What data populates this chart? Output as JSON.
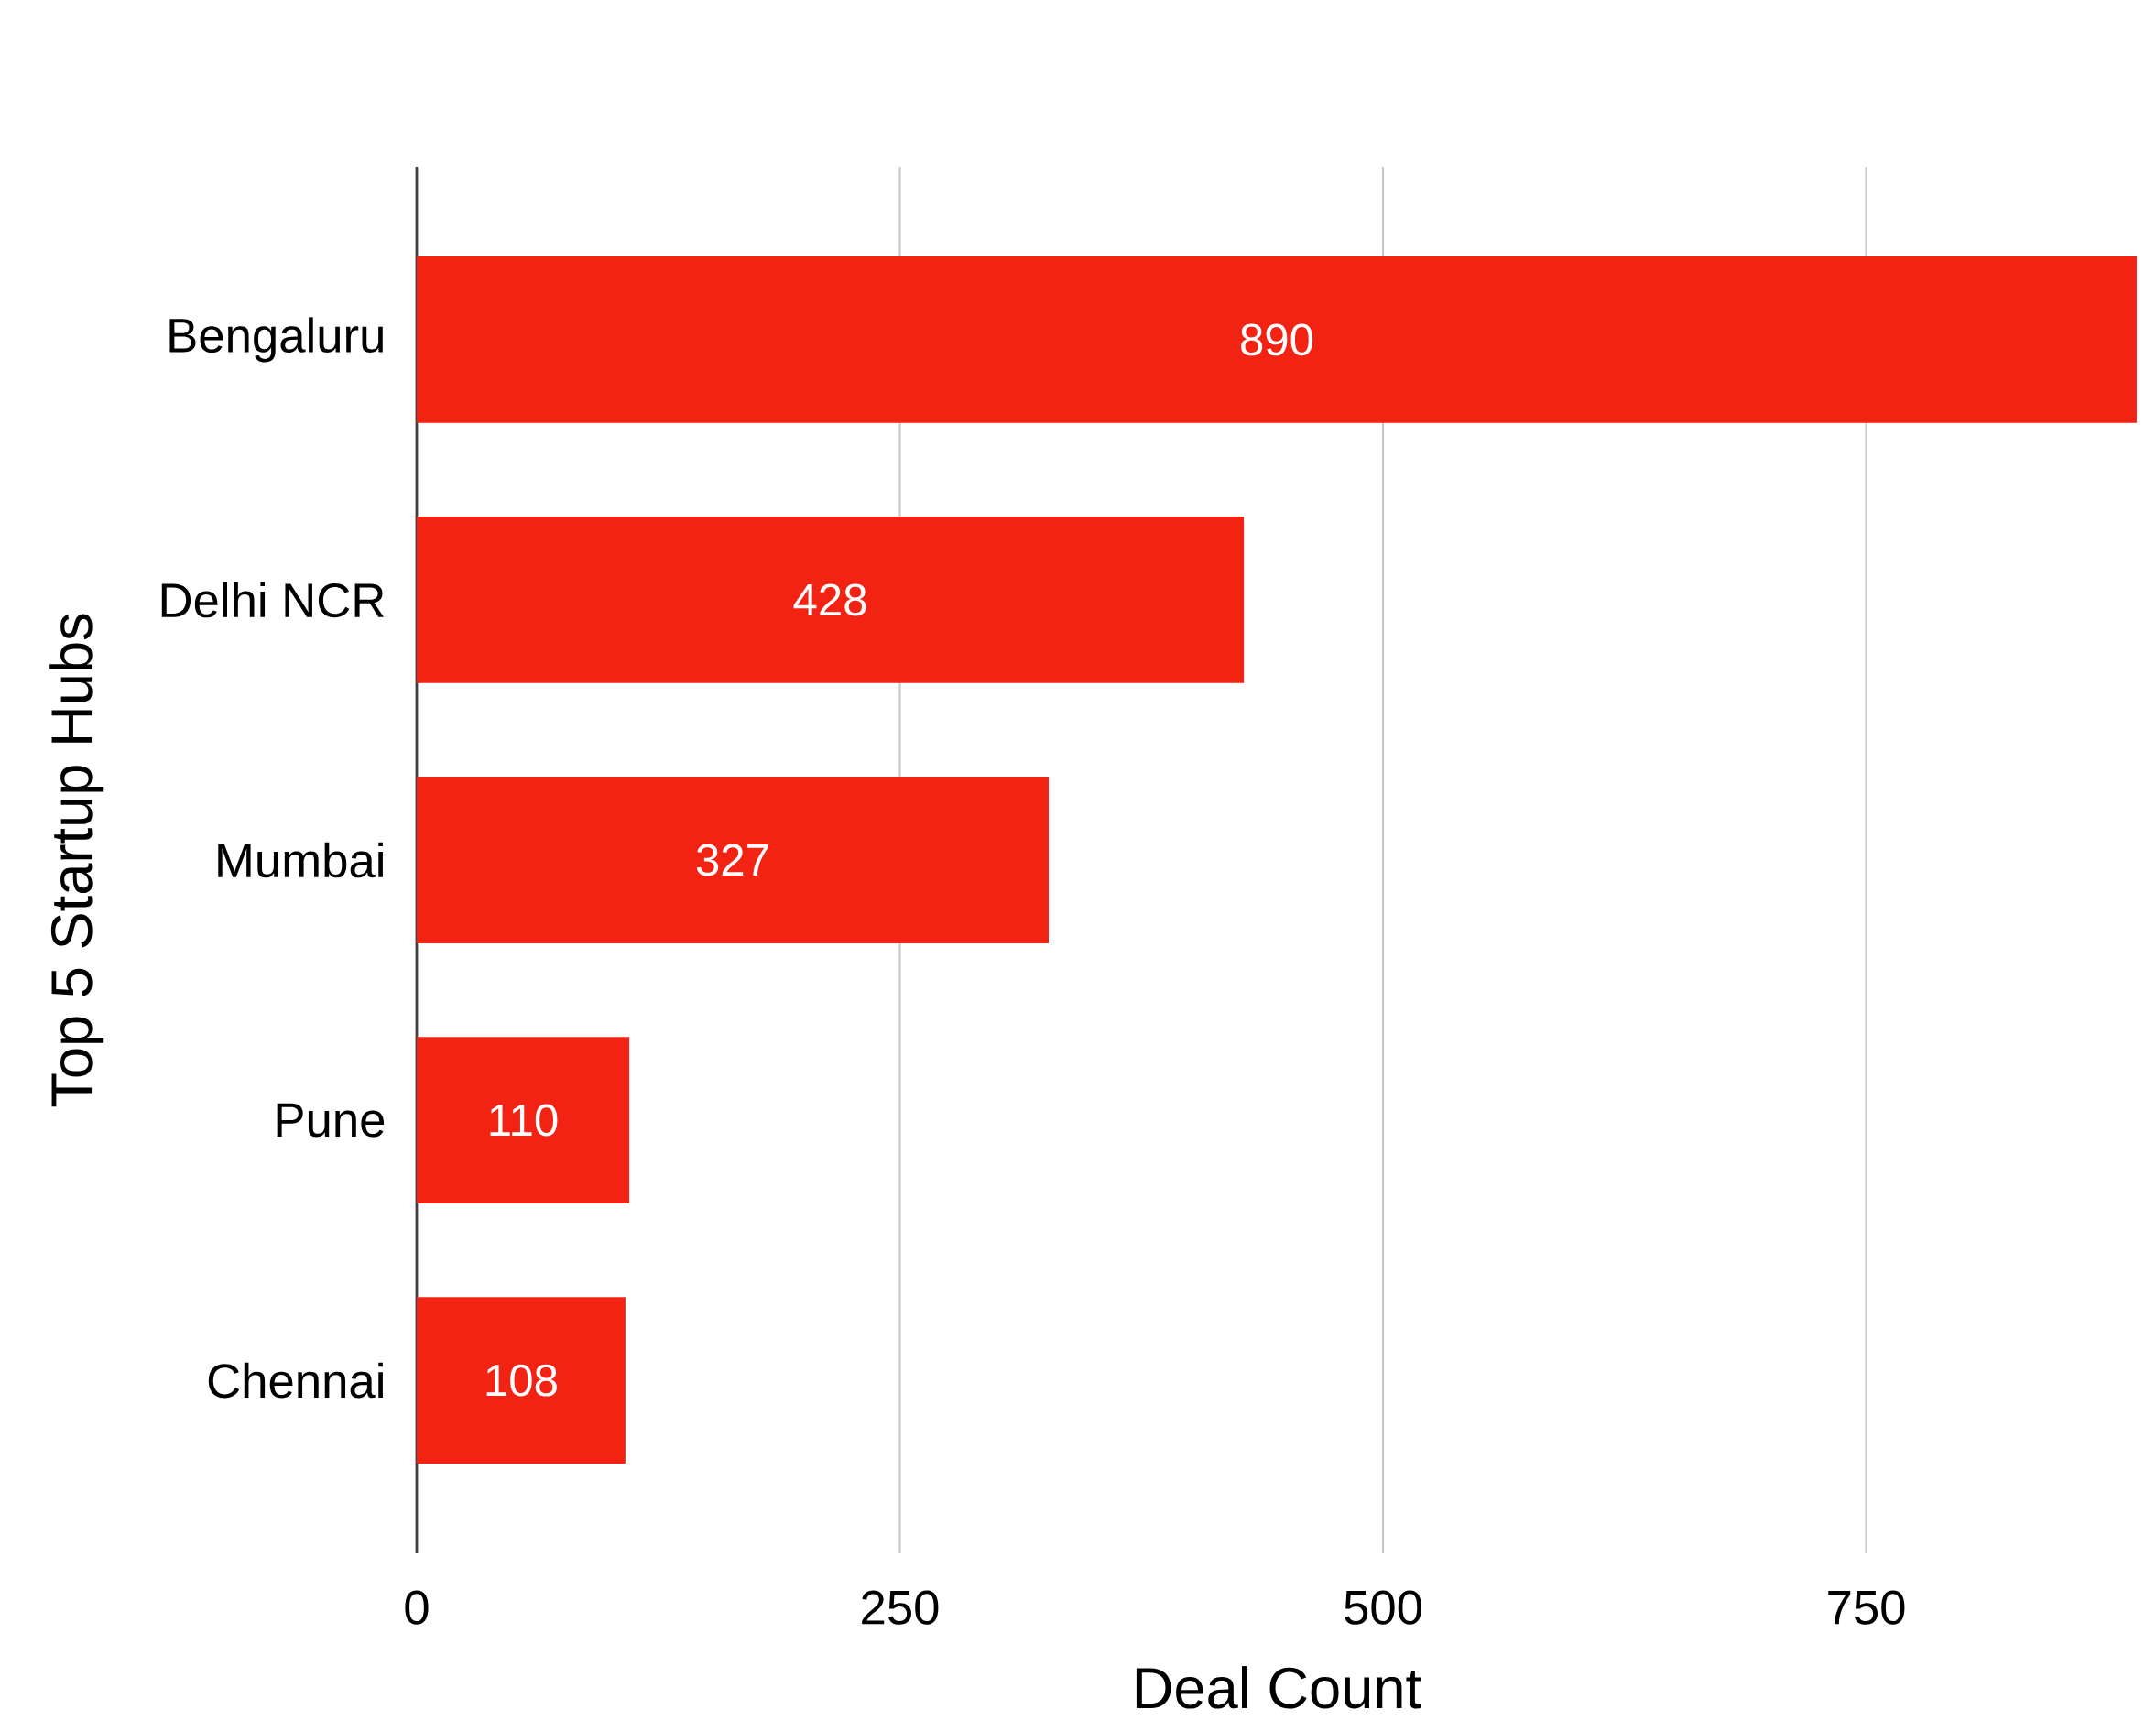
{
  "chart_data": {
    "type": "bar",
    "orientation": "horizontal",
    "xlabel": "Deal Count",
    "ylabel": "Top 5 Startup Hubs",
    "categories": [
      "Bengaluru",
      "Delhi NCR",
      "Mumbai",
      "Pune",
      "Chennai"
    ],
    "values": [
      890,
      428,
      327,
      110,
      108
    ],
    "color": "#f32314",
    "xlim": [
      0,
      890
    ],
    "xticks": [
      0,
      250,
      500,
      750
    ],
    "grid": "x",
    "data_labels": true
  }
}
